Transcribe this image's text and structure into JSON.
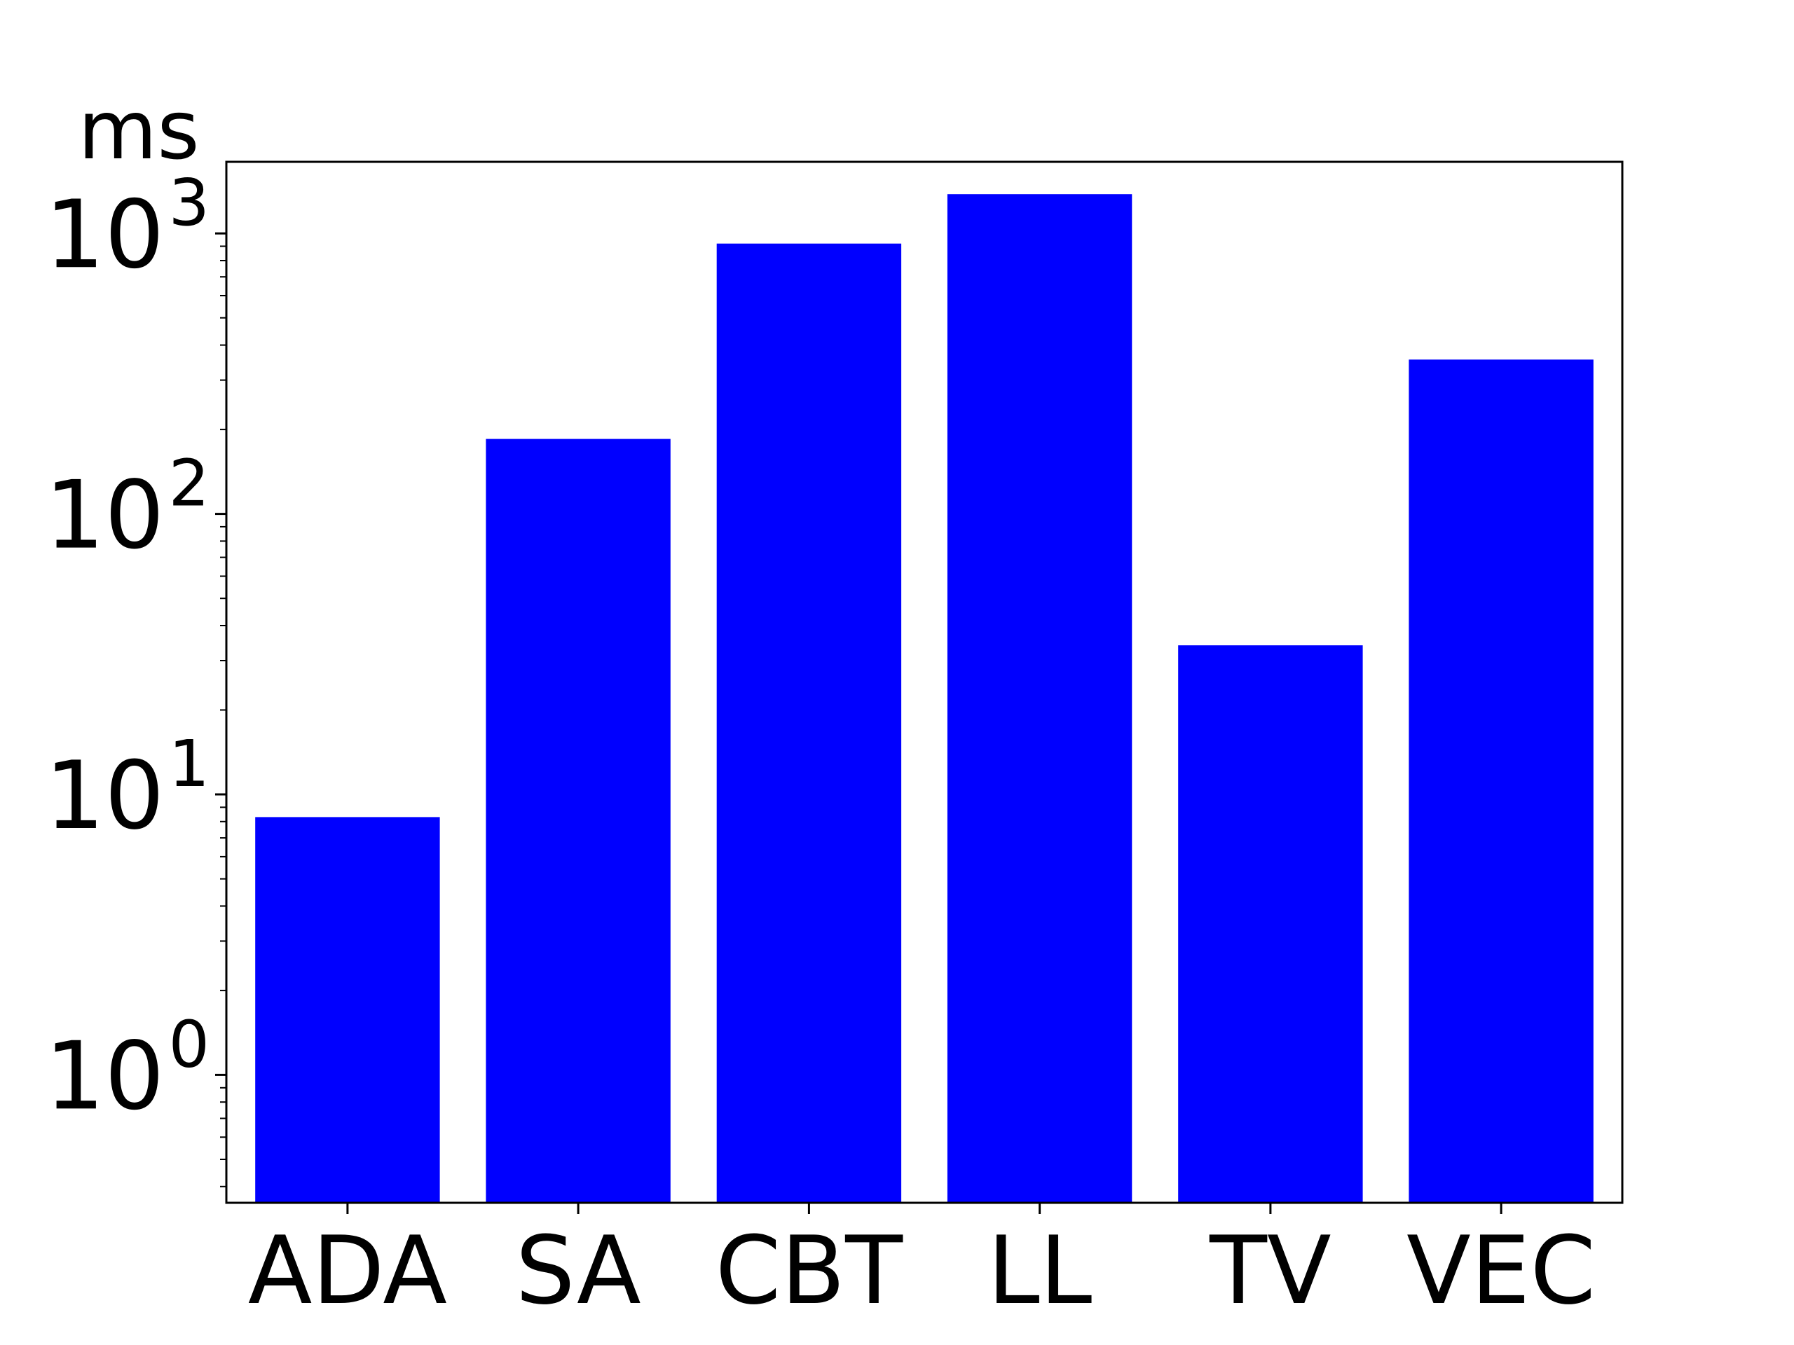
{
  "chart_data": {
    "type": "bar",
    "title": "",
    "xlabel": "",
    "ylabel": "ms",
    "yscale": "log",
    "ylim": [
      0.35,
      1800
    ],
    "grid": false,
    "categories": [
      "ADA",
      "SA",
      "CBT",
      "LL",
      "TV",
      "VEC"
    ],
    "values": [
      8.3,
      185,
      920,
      1380,
      34,
      355
    ],
    "y_ticks": [
      {
        "value": 1,
        "base": "10",
        "exp": "0"
      },
      {
        "value": 10,
        "base": "10",
        "exp": "1"
      },
      {
        "value": 100,
        "base": "10",
        "exp": "2"
      },
      {
        "value": 1000,
        "base": "10",
        "exp": "3"
      }
    ],
    "bar_color": "#0000ff"
  }
}
